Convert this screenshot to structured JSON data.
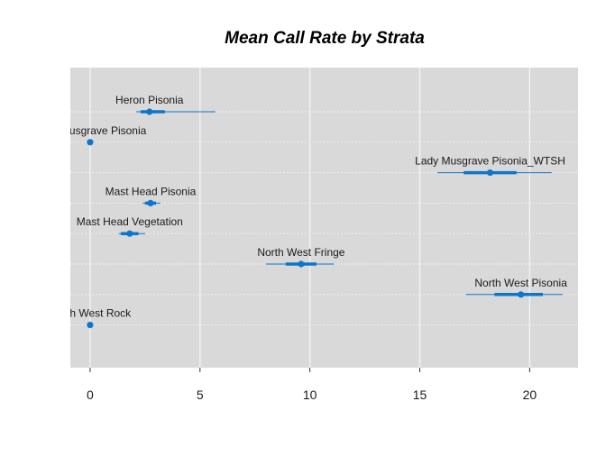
{
  "chart_data": {
    "type": "scatter",
    "title": "Mean Call Rate by Strata",
    "xlabel": "",
    "ylabel": "",
    "xlim": [
      -0.9,
      22.2
    ],
    "x_ticks": [
      0,
      5,
      10,
      15,
      20
    ],
    "x_tick_labels": [
      "0",
      "5",
      "10",
      "15",
      "20"
    ],
    "grid": true,
    "colors": {
      "panel": "#d9d9d9",
      "grid": "#f2f2f2",
      "point": "#0f75c9"
    },
    "points": [
      {
        "label": "Heron Pisonia",
        "mean": 2.7,
        "inner": [
          2.3,
          3.4
        ],
        "outer": [
          2.1,
          5.7
        ]
      },
      {
        "label": "Lady Musgrave Pisonia",
        "mean": 0.0,
        "inner": [
          0.0,
          0.0
        ],
        "outer": [
          0.0,
          0.0
        ]
      },
      {
        "label": "Lady Musgrave Pisonia_WTSH",
        "mean": 18.2,
        "inner": [
          17.0,
          19.4
        ],
        "outer": [
          15.8,
          21.0
        ]
      },
      {
        "label": "Mast Head Pisonia",
        "mean": 2.75,
        "inner": [
          2.5,
          3.0
        ],
        "outer": [
          2.4,
          3.2
        ]
      },
      {
        "label": "Mast Head Vegetation",
        "mean": 1.8,
        "inner": [
          1.4,
          2.2
        ],
        "outer": [
          1.3,
          2.5
        ]
      },
      {
        "label": "North West Fringe",
        "mean": 9.6,
        "inner": [
          8.9,
          10.3
        ],
        "outer": [
          8.0,
          11.1
        ]
      },
      {
        "label": "North West Pisonia",
        "mean": 19.6,
        "inner": [
          18.4,
          20.6
        ],
        "outer": [
          17.1,
          21.5
        ]
      },
      {
        "label": "North West Rock",
        "mean": 0.0,
        "inner": [
          0.0,
          0.0
        ],
        "outer": [
          0.0,
          0.0
        ]
      }
    ]
  }
}
